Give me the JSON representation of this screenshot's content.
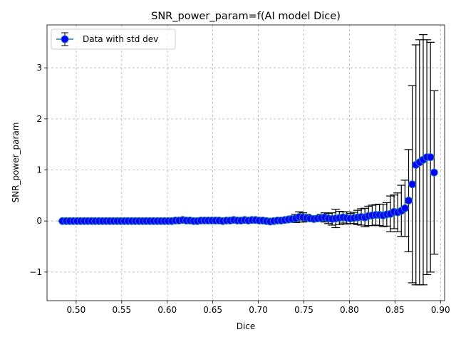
{
  "chart_data": {
    "type": "scatter",
    "title": "SNR_power_param=f(AI model Dice)",
    "xlabel": "Dice",
    "ylabel": "SNR_power_param",
    "xlim": [
      0.468,
      0.9045
    ],
    "ylim": [
      -1.56,
      3.84
    ],
    "xticks": [
      0.5,
      0.55,
      0.6,
      0.65,
      0.7,
      0.75,
      0.8,
      0.85,
      0.9
    ],
    "xtick_labels": [
      "0.50",
      "0.55",
      "0.60",
      "0.65",
      "0.70",
      "0.75",
      "0.80",
      "0.85",
      "0.90"
    ],
    "yticks": [
      -1,
      0,
      1,
      2,
      3
    ],
    "ytick_labels": [
      "−1",
      "0",
      "1",
      "2",
      "3"
    ],
    "grid": true,
    "legend_position": "upper-left",
    "series": [
      {
        "name": "Data with std dev",
        "marker_color": "#0000ff",
        "line_color": "#1f77b4",
        "errorbar_color": "#000000",
        "x": [
          0.485,
          0.489,
          0.493,
          0.497,
          0.501,
          0.505,
          0.509,
          0.513,
          0.517,
          0.521,
          0.525,
          0.529,
          0.533,
          0.537,
          0.541,
          0.545,
          0.549,
          0.553,
          0.557,
          0.561,
          0.565,
          0.569,
          0.573,
          0.577,
          0.581,
          0.585,
          0.589,
          0.593,
          0.597,
          0.601,
          0.605,
          0.609,
          0.613,
          0.617,
          0.621,
          0.625,
          0.629,
          0.633,
          0.637,
          0.641,
          0.645,
          0.649,
          0.653,
          0.657,
          0.661,
          0.665,
          0.669,
          0.673,
          0.677,
          0.681,
          0.685,
          0.689,
          0.693,
          0.697,
          0.701,
          0.705,
          0.709,
          0.713,
          0.717,
          0.721,
          0.725,
          0.729,
          0.733,
          0.737,
          0.741,
          0.745,
          0.749,
          0.753,
          0.757,
          0.761,
          0.765,
          0.769,
          0.773,
          0.777,
          0.781,
          0.785,
          0.789,
          0.793,
          0.797,
          0.801,
          0.805,
          0.809,
          0.813,
          0.817,
          0.821,
          0.825,
          0.829,
          0.833,
          0.837,
          0.841,
          0.845,
          0.849,
          0.853,
          0.857,
          0.861,
          0.865,
          0.869,
          0.873,
          0.877,
          0.881,
          0.885,
          0.889,
          0.893
        ],
        "y": [
          0.0,
          0.0,
          0.0,
          0.0,
          0.0,
          0.0,
          0.0,
          0.0,
          0.0,
          0.0,
          0.0,
          0.0,
          0.0,
          0.0,
          0.0,
          0.0,
          0.0,
          0.0,
          0.0,
          0.0,
          0.0,
          0.0,
          0.0,
          0.0,
          0.0,
          0.0,
          0.0,
          0.0,
          0.0,
          0.0,
          0.0,
          0.01,
          0.01,
          0.02,
          0.01,
          0.01,
          0.0,
          0.0,
          0.01,
          0.01,
          0.01,
          0.01,
          0.01,
          0.01,
          0.0,
          0.01,
          0.01,
          0.02,
          0.01,
          0.01,
          0.02,
          0.01,
          0.02,
          0.02,
          0.01,
          0.01,
          0.0,
          -0.01,
          0.0,
          0.01,
          0.01,
          0.02,
          0.03,
          0.04,
          0.05,
          0.08,
          0.07,
          0.06,
          0.05,
          0.04,
          0.05,
          0.06,
          0.07,
          0.05,
          0.04,
          0.05,
          0.06,
          0.07,
          0.06,
          0.05,
          0.06,
          0.07,
          0.08,
          0.07,
          0.1,
          0.11,
          0.12,
          0.12,
          0.11,
          0.13,
          0.14,
          0.18,
          0.17,
          0.2,
          0.25,
          0.4,
          0.72,
          1.1,
          1.15,
          1.2,
          1.25,
          1.25,
          0.95
        ],
        "err": [
          0.0,
          0.0,
          0.0,
          0.0,
          0.0,
          0.0,
          0.0,
          0.0,
          0.0,
          0.0,
          0.0,
          0.0,
          0.0,
          0.0,
          0.0,
          0.0,
          0.0,
          0.0,
          0.0,
          0.0,
          0.0,
          0.0,
          0.0,
          0.0,
          0.0,
          0.0,
          0.0,
          0.0,
          0.0,
          0.0,
          0.0,
          0.0,
          0.0,
          0.0,
          0.0,
          0.0,
          0.0,
          0.0,
          0.0,
          0.0,
          0.0,
          0.0,
          0.0,
          0.0,
          0.0,
          0.0,
          0.0,
          0.0,
          0.0,
          0.0,
          0.0,
          0.0,
          0.0,
          0.0,
          0.0,
          0.0,
          0.0,
          0.0,
          0.0,
          0.0,
          0.0,
          0.0,
          0.04,
          0.06,
          0.08,
          0.1,
          0.09,
          0.07,
          0.05,
          0.04,
          0.05,
          0.07,
          0.09,
          0.1,
          0.12,
          0.18,
          0.13,
          0.11,
          0.12,
          0.1,
          0.11,
          0.14,
          0.16,
          0.18,
          0.19,
          0.2,
          0.2,
          0.21,
          0.22,
          0.23,
          0.35,
          0.33,
          0.38,
          0.5,
          0.55,
          1.0,
          1.93,
          2.35,
          2.4,
          2.45,
          2.3,
          2.25,
          1.6
        ]
      }
    ]
  }
}
